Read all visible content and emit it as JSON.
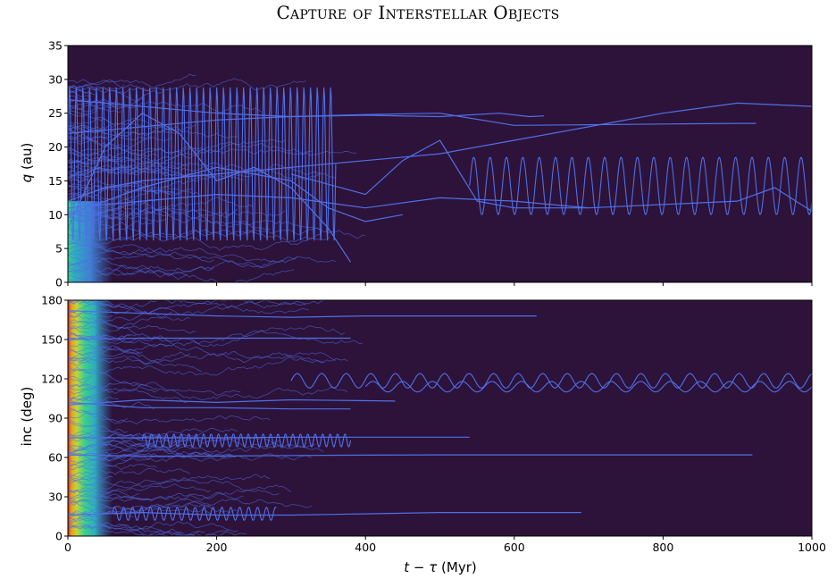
{
  "title": "Capture of Interstellar Objects",
  "colors": {
    "background": "#2d1239",
    "trajectory": "#4f70e8",
    "dense_core": [
      "#3f86d8",
      "#2fb7c5",
      "#3ad98f",
      "#c4e23a",
      "#f2a81d",
      "#d5261b"
    ]
  },
  "chart_data": [
    {
      "type": "heatmap",
      "panel": "top",
      "ylabel": "q (au)",
      "ylabel_var": "q",
      "ylabel_unit": " (au)",
      "ylim": [
        0,
        35
      ],
      "yticks": [
        0,
        5,
        10,
        15,
        20,
        25,
        30,
        35
      ],
      "xlim": [
        0,
        1000
      ],
      "xticks": [
        0,
        200,
        400,
        600,
        800,
        1000
      ],
      "series": [
        {
          "x": [
            0,
            50,
            100,
            200,
            300,
            400,
            500,
            600,
            700,
            800,
            900,
            1000
          ],
          "y": [
            12,
            14,
            15,
            16,
            17,
            18,
            19,
            21,
            23,
            25,
            26.5,
            26
          ]
        },
        {
          "x": [
            0,
            100,
            200,
            300,
            400,
            500,
            600,
            700,
            800,
            900,
            925
          ],
          "y": [
            22,
            23,
            24,
            24.5,
            24.8,
            25,
            23.2,
            23.3,
            23.4,
            23.5,
            23.5
          ]
        },
        {
          "x": [
            0,
            100,
            200,
            300,
            400,
            500,
            580,
            620,
            640
          ],
          "y": [
            27,
            26,
            25,
            24.5,
            24.7,
            24.5,
            25,
            24.5,
            24.6
          ]
        },
        {
          "x": [
            300,
            400,
            450,
            500,
            550,
            600,
            700,
            800,
            900,
            950,
            1000
          ],
          "y": [
            16,
            13,
            18,
            21,
            12,
            11,
            11,
            11.5,
            12,
            14,
            10.5
          ]
        },
        {
          "x": [
            0,
            100,
            200,
            300,
            400,
            500,
            600,
            700
          ],
          "y": [
            11,
            12,
            13,
            12.5,
            11,
            12.5,
            12,
            11
          ]
        },
        {
          "x": [
            0,
            100,
            200,
            300,
            350,
            400,
            450
          ],
          "y": [
            10,
            14,
            17,
            15,
            11,
            9,
            10
          ]
        },
        {
          "x": [
            0,
            50,
            100,
            150,
            200,
            250,
            300,
            350,
            380
          ],
          "y": [
            8,
            20,
            25,
            22,
            15,
            17,
            14,
            8,
            3
          ]
        }
      ],
      "oscillating_series": [
        {
          "x_start": 540,
          "x_end": 1000,
          "y_low": 10,
          "y_high": 18.5,
          "period": 22
        },
        {
          "x_start": 0,
          "x_end": 360,
          "y_low": 6,
          "y_high": 29,
          "period": 9
        }
      ]
    },
    {
      "type": "heatmap",
      "panel": "bottom",
      "ylabel": "inc (deg)",
      "ylim": [
        0,
        180
      ],
      "yticks": [
        0,
        30,
        60,
        90,
        120,
        150,
        180
      ],
      "xlim": [
        0,
        1000
      ],
      "xticks": [
        0,
        200,
        400,
        600,
        800,
        1000
      ],
      "xlabel": "t − τ (Myr)",
      "xlabel_var": "t − τ",
      "xlabel_unit": " (Myr)",
      "series": [
        {
          "x": [
            0,
            100,
            200,
            300,
            400,
            500,
            600,
            630
          ],
          "y": [
            172,
            170,
            168,
            167,
            168,
            168,
            168,
            168
          ]
        },
        {
          "x": [
            0,
            100,
            200,
            300,
            400,
            500,
            600,
            700,
            800,
            900,
            920
          ],
          "y": [
            62,
            61,
            61,
            61.5,
            61.8,
            62,
            62,
            62,
            62,
            62,
            62
          ]
        },
        {
          "x": [
            0,
            100,
            200,
            300,
            400,
            500,
            540
          ],
          "y": [
            75,
            75,
            75,
            75.5,
            75.5,
            75.5,
            75.5
          ]
        },
        {
          "x": [
            0,
            100,
            200,
            300,
            400,
            500,
            600,
            690
          ],
          "y": [
            16,
            18,
            16,
            16,
            17,
            18,
            18,
            18
          ]
        },
        {
          "x": [
            0,
            100,
            200,
            300,
            380
          ],
          "y": [
            150,
            151,
            151,
            151,
            151
          ]
        },
        {
          "x": [
            0,
            100,
            200,
            300,
            380
          ],
          "y": [
            102,
            98,
            98,
            97,
            97
          ]
        },
        {
          "x": [
            0,
            100,
            200,
            300,
            440
          ],
          "y": [
            100,
            104,
            102,
            104,
            103
          ]
        }
      ],
      "oscillating_series": [
        {
          "x_start": 300,
          "x_end": 1000,
          "y_low": 113,
          "y_high": 124,
          "period": 33
        },
        {
          "x_start": 400,
          "x_end": 1000,
          "y_low": 110,
          "y_high": 118,
          "period": 40
        },
        {
          "x_start": 100,
          "x_end": 380,
          "y_low": 68,
          "y_high": 78,
          "period": 10
        },
        {
          "x_start": 60,
          "x_end": 280,
          "y_low": 12,
          "y_high": 22,
          "period": 12
        }
      ]
    }
  ]
}
